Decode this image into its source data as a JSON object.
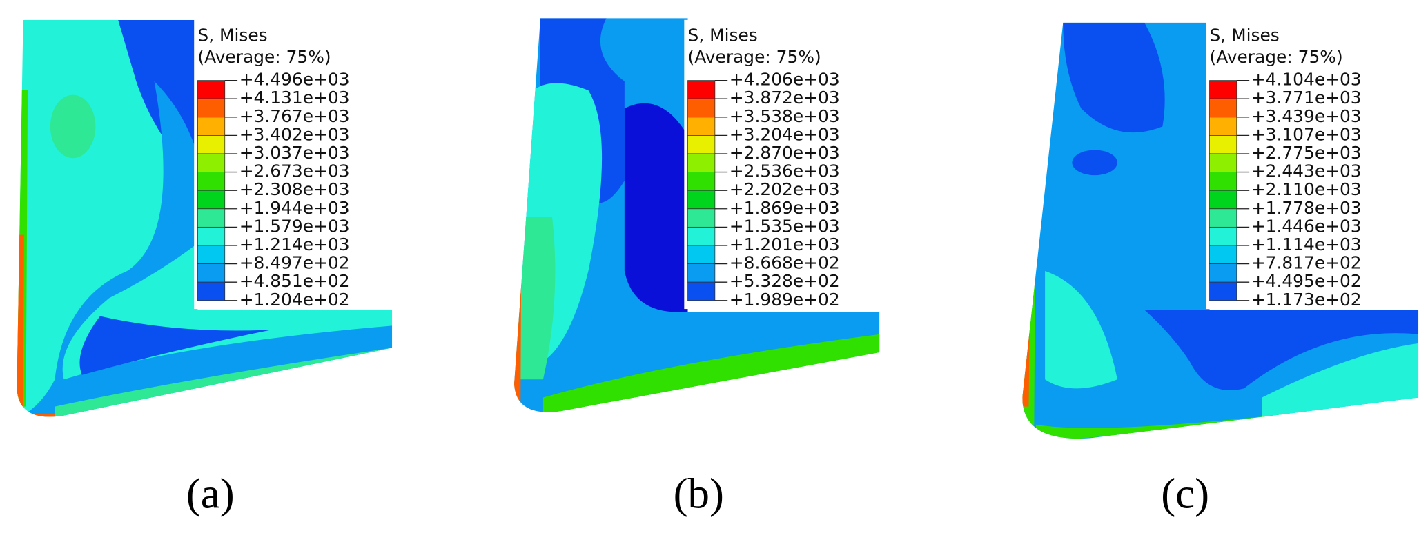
{
  "panels": [
    {
      "legend": {
        "title": "S, Mises",
        "subtitle": "(Average: 75%)",
        "levels": [
          "+4.496e+03",
          "+4.131e+03",
          "+3.767e+03",
          "+3.402e+03",
          "+3.037e+03",
          "+2.673e+03",
          "+2.308e+03",
          "+1.944e+03",
          "+1.579e+03",
          "+1.214e+03",
          "+8.497e+02",
          "+4.851e+02",
          "+1.204e+02"
        ]
      },
      "caption": "(a)"
    },
    {
      "legend": {
        "title": "S, Mises",
        "subtitle": "(Average: 75%)",
        "levels": [
          "+4.206e+03",
          "+3.872e+03",
          "+3.538e+03",
          "+3.204e+03",
          "+2.870e+03",
          "+2.536e+03",
          "+2.202e+03",
          "+1.869e+03",
          "+1.535e+03",
          "+1.201e+03",
          "+8.668e+02",
          "+5.328e+02",
          "+1.989e+02"
        ]
      },
      "caption": "(b)"
    },
    {
      "legend": {
        "title": "S, Mises",
        "subtitle": "(Average: 75%)",
        "levels": [
          "+4.104e+03",
          "+3.771e+03",
          "+3.439e+03",
          "+3.107e+03",
          "+2.775e+03",
          "+2.443e+03",
          "+2.110e+03",
          "+1.778e+03",
          "+1.446e+03",
          "+1.114e+03",
          "+7.817e+02",
          "+4.495e+02",
          "+1.173e+02"
        ]
      },
      "caption": "(c)"
    }
  ],
  "colors": [
    "#ff0000",
    "#ff5e00",
    "#ffb000",
    "#e8f000",
    "#8ef000",
    "#30e000",
    "#00d41c",
    "#2ee896",
    "#22f2d8",
    "#00c8f0",
    "#0a9cf0",
    "#0a50f0",
    "#0a10d8"
  ]
}
